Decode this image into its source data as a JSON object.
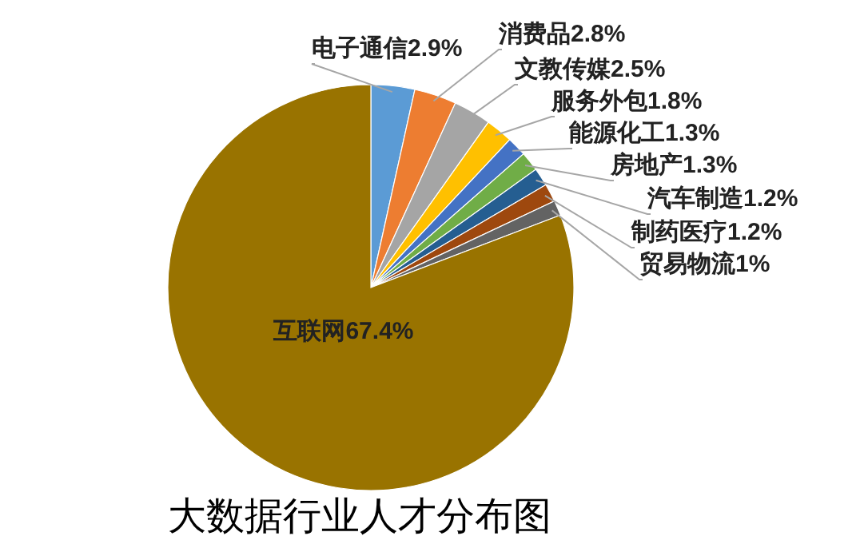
{
  "chart_data": {
    "type": "pie",
    "title": "大数据行业人才分布图",
    "categories": [
      "电子通信",
      "消费品",
      "文教传媒",
      "服务外包",
      "能源化工",
      "房地产",
      "汽车制造",
      "制药医疗",
      "贸易物流",
      "互联网"
    ],
    "values": [
      2.9,
      2.8,
      2.5,
      1.8,
      1.3,
      1.3,
      1.2,
      1.2,
      1,
      67.4
    ],
    "value_labels": [
      "2.9%",
      "2.8%",
      "2.5%",
      "1.8%",
      "1.3%",
      "1.3%",
      "1.2%",
      "1.2%",
      "1%",
      "67.4%"
    ],
    "colors": [
      "#5b9bd5",
      "#ed7d31",
      "#a5a5a5",
      "#ffc000",
      "#4472c4",
      "#70ad47",
      "#255e91",
      "#9e480e",
      "#636363",
      "#997300"
    ],
    "legend": false
  }
}
